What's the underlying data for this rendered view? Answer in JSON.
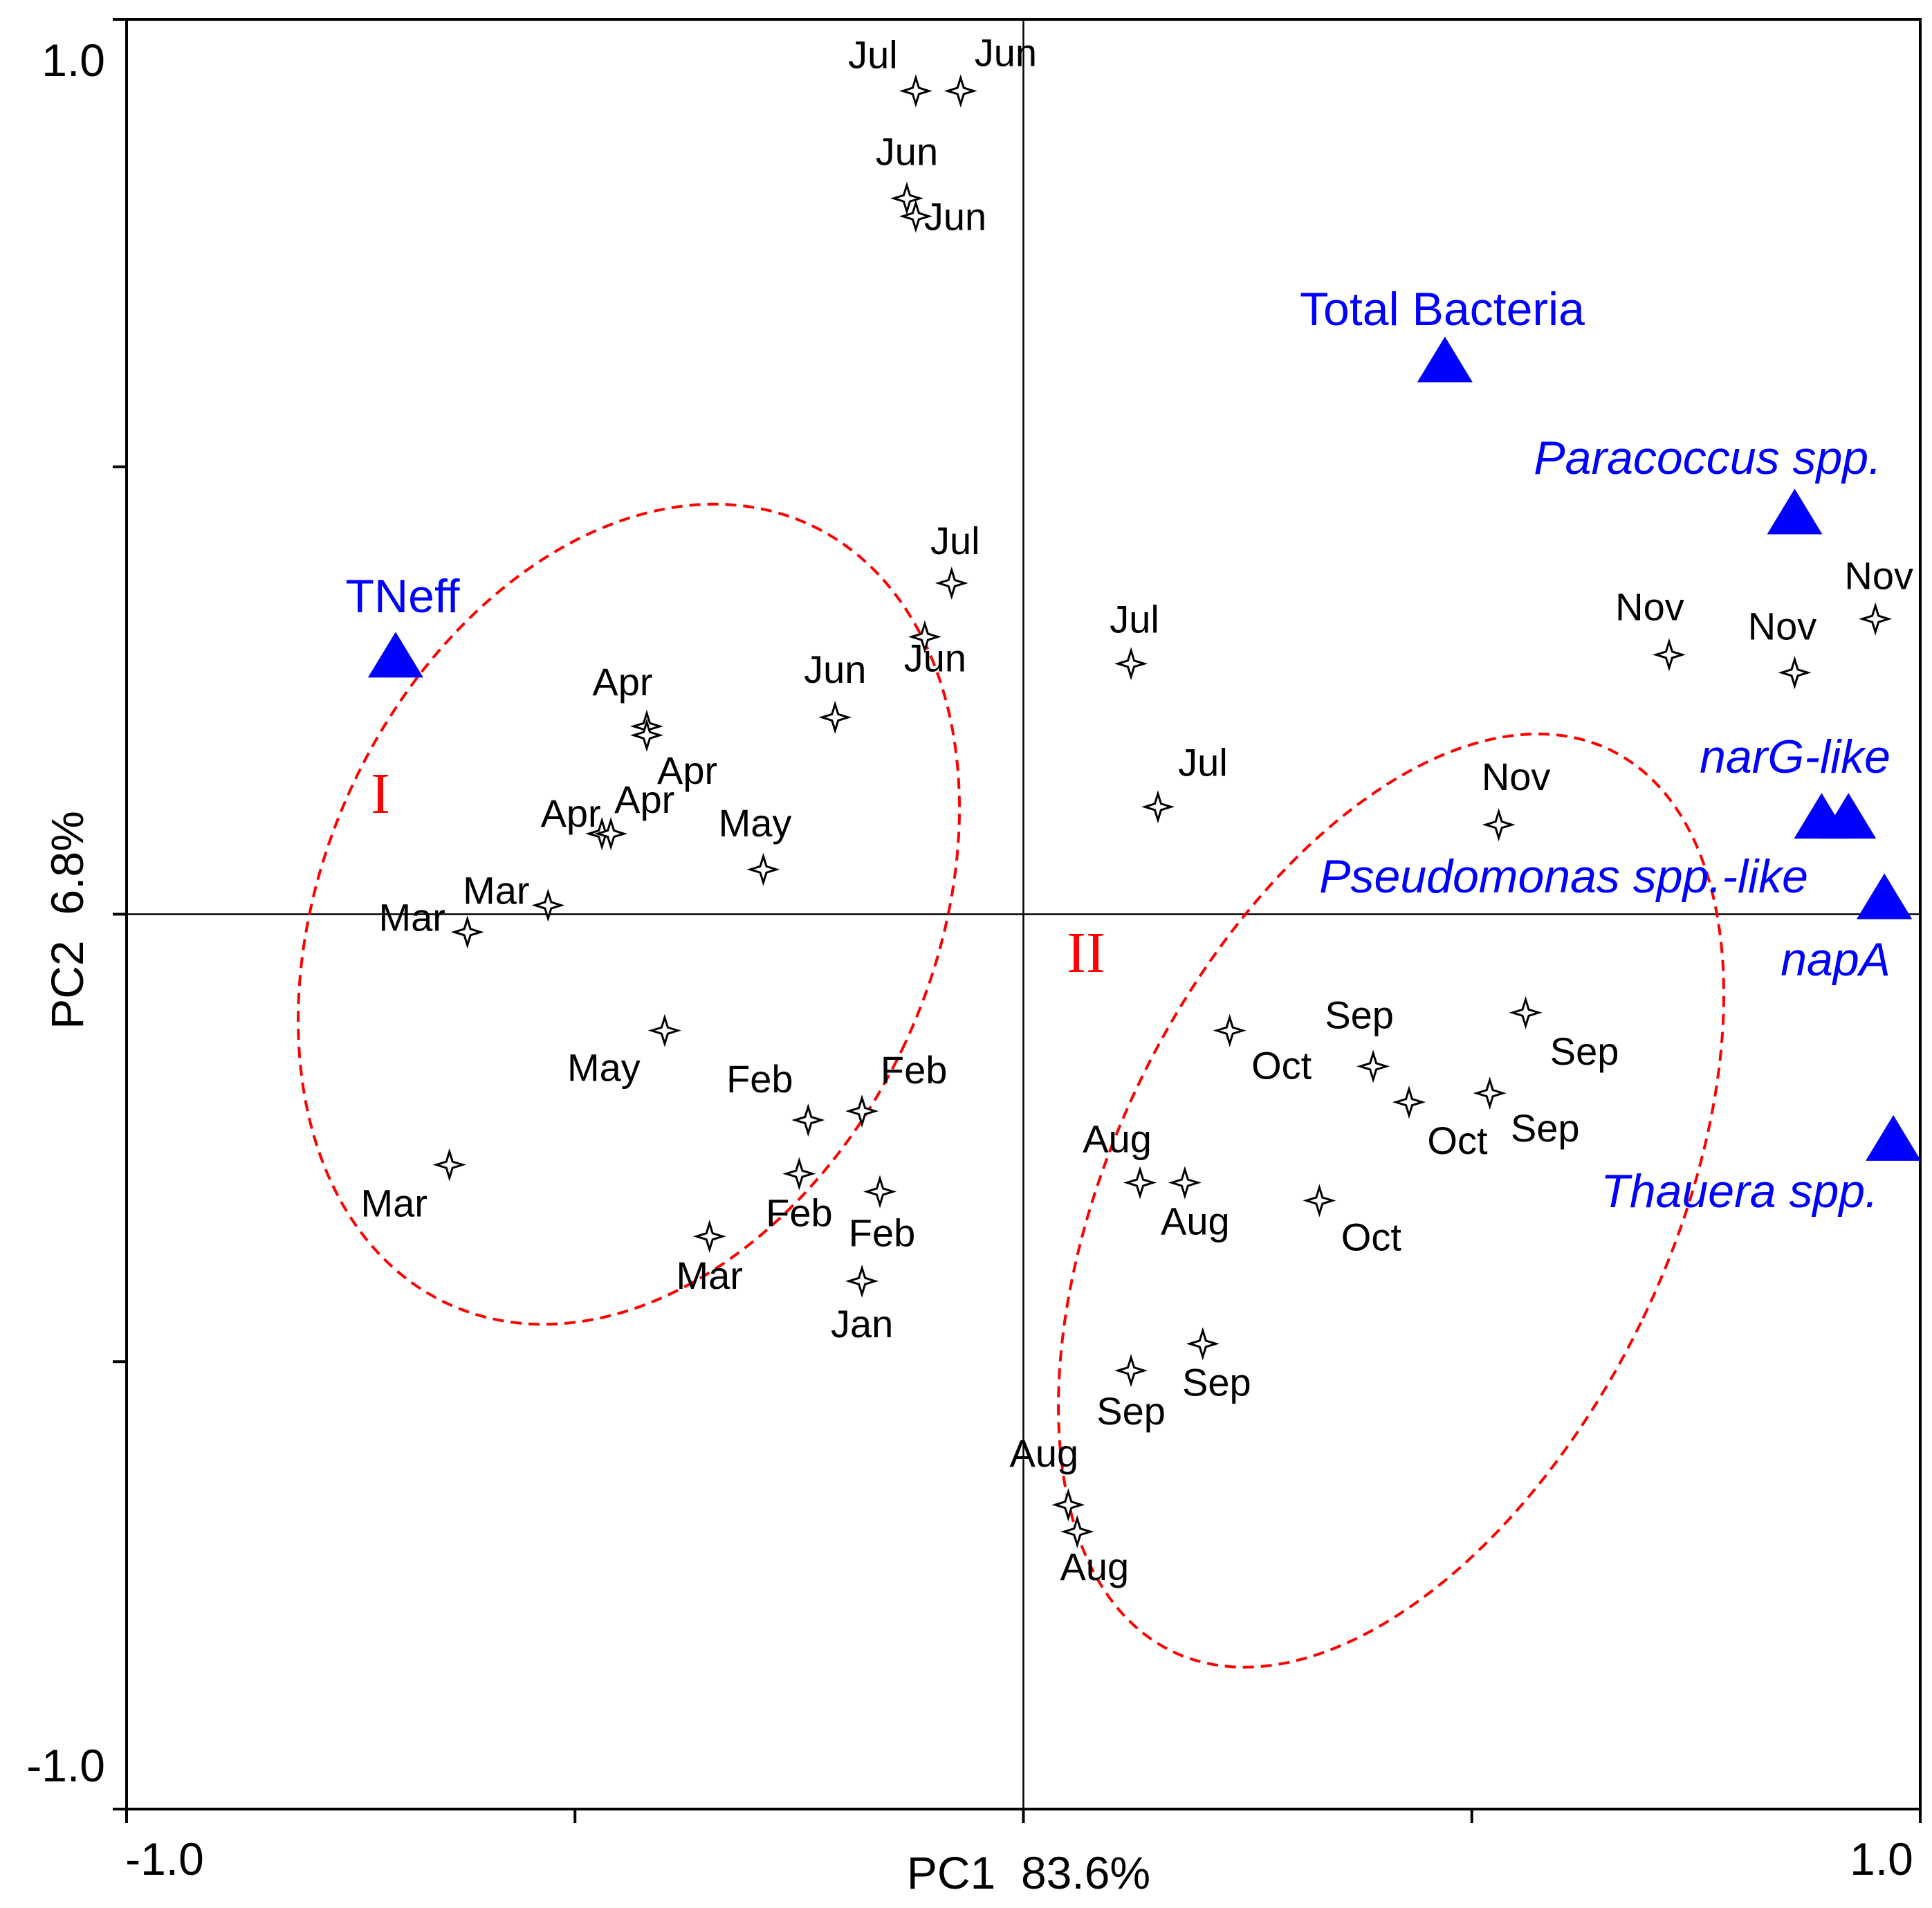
{
  "chart_data": {
    "type": "scatter",
    "title": "",
    "xlabel": "PC1  83.6%",
    "ylabel": "PC2  6.8%",
    "xlim": [
      -1.0,
      1.0
    ],
    "ylim": [
      -1.0,
      1.0
    ],
    "x_tick_labels": [
      {
        "value": -1.0,
        "label": "-1.0"
      },
      {
        "value": 1.0,
        "label": "1.0"
      }
    ],
    "y_tick_labels": [
      {
        "value": 1.0,
        "label": "1.0"
      },
      {
        "value": -1.0,
        "label": "-1.0"
      }
    ],
    "minor_ticks": [
      -0.5,
      0.0,
      0.5
    ],
    "origin_lines": true,
    "colors": {
      "axis": "#000000",
      "samples": "#000000",
      "variables": "#0000ff",
      "group_ellipse": "#ff0000",
      "group_label": "#ff0000"
    },
    "samples": [
      {
        "label": "Jul",
        "x": -0.12,
        "y": 0.92
      },
      {
        "label": "Jun",
        "x": -0.07,
        "y": 0.92
      },
      {
        "label": "Jun",
        "x": -0.13,
        "y": 0.8
      },
      {
        "label": "Jun",
        "x": -0.12,
        "y": 0.78
      },
      {
        "label": "Jul",
        "x": -0.08,
        "y": 0.37
      },
      {
        "label": "Jun",
        "x": -0.11,
        "y": 0.31
      },
      {
        "label": "Jun",
        "x": -0.21,
        "y": 0.22
      },
      {
        "label": "Apr",
        "x": -0.42,
        "y": 0.21
      },
      {
        "label": "Apr",
        "x": -0.42,
        "y": 0.2
      },
      {
        "label": "Apr",
        "x": -0.47,
        "y": 0.09
      },
      {
        "label": "Apr",
        "x": -0.46,
        "y": 0.09
      },
      {
        "label": "May",
        "x": -0.29,
        "y": 0.05
      },
      {
        "label": "Mar",
        "x": -0.53,
        "y": 0.01
      },
      {
        "label": "Mar",
        "x": -0.62,
        "y": -0.02
      },
      {
        "label": "May",
        "x": -0.4,
        "y": -0.13
      },
      {
        "label": "Feb",
        "x": -0.24,
        "y": -0.23
      },
      {
        "label": "Feb",
        "x": -0.18,
        "y": -0.22
      },
      {
        "label": "Feb",
        "x": -0.25,
        "y": -0.29
      },
      {
        "label": "Feb",
        "x": -0.16,
        "y": -0.31
      },
      {
        "label": "Mar",
        "x": -0.35,
        "y": -0.36
      },
      {
        "label": "Jan",
        "x": -0.18,
        "y": -0.41
      },
      {
        "label": "Mar",
        "x": -0.64,
        "y": -0.28
      },
      {
        "label": "Jul",
        "x": 0.12,
        "y": 0.28
      },
      {
        "label": "Jul",
        "x": 0.15,
        "y": 0.12
      },
      {
        "label": "Nov",
        "x": 0.53,
        "y": 0.1
      },
      {
        "label": "Nov",
        "x": 0.72,
        "y": 0.29
      },
      {
        "label": "Nov",
        "x": 0.86,
        "y": 0.27
      },
      {
        "label": "Nov",
        "x": 0.95,
        "y": 0.33
      },
      {
        "label": "Oct",
        "x": 0.23,
        "y": -0.13
      },
      {
        "label": "Sep",
        "x": 0.39,
        "y": -0.17
      },
      {
        "label": "Oct",
        "x": 0.43,
        "y": -0.21
      },
      {
        "label": "Sep",
        "x": 0.56,
        "y": -0.11
      },
      {
        "label": "Sep",
        "x": 0.52,
        "y": -0.2
      },
      {
        "label": "Aug",
        "x": 0.13,
        "y": -0.3
      },
      {
        "label": "Aug",
        "x": 0.18,
        "y": -0.3
      },
      {
        "label": "Oct",
        "x": 0.33,
        "y": -0.32
      },
      {
        "label": "Sep",
        "x": 0.12,
        "y": -0.51
      },
      {
        "label": "Sep",
        "x": 0.2,
        "y": -0.48
      },
      {
        "label": "Aug",
        "x": 0.05,
        "y": -0.66
      },
      {
        "label": "Aug",
        "x": 0.06,
        "y": -0.69
      }
    ],
    "variables": [
      {
        "label": "Total Bacteria",
        "x": 0.47,
        "y": 0.62,
        "italic": false
      },
      {
        "label": "Paracoccus spp.",
        "x": 0.86,
        "y": 0.45,
        "italic": true
      },
      {
        "label": "TNeff",
        "x": -0.7,
        "y": 0.29,
        "italic": false
      },
      {
        "label": "narG-like",
        "x": 0.89,
        "y": 0.11,
        "italic": true
      },
      {
        "label": "narG-like",
        "x": 0.92,
        "y": 0.11,
        "italic": true
      },
      {
        "label": "Pseudomonas spp.-like",
        "x": 0.96,
        "y": 0.02,
        "italic": true
      },
      {
        "label": "napA",
        "x": 0.96,
        "y": 0.02,
        "italic": true
      },
      {
        "label": "Thauera spp.",
        "x": 0.97,
        "y": -0.25,
        "italic": true
      }
    ],
    "variable_labels": [
      {
        "text": "Total Bacteria",
        "italic": false
      },
      {
        "text": "Paracoccus spp.",
        "italic": true
      },
      {
        "text": "TNeff",
        "italic": false
      },
      {
        "text": "narG-like",
        "italic": true
      },
      {
        "text": "Pseudomonas spp.-like",
        "italic": true
      },
      {
        "text": "napA",
        "italic": true
      },
      {
        "text": "Thauera spp.",
        "italic": true
      }
    ],
    "groups": [
      {
        "label": "I",
        "center": [
          -0.44,
          0.0
        ],
        "radii": [
          0.34,
          0.48
        ],
        "rotation_deg": 25
      },
      {
        "label": "II",
        "center": [
          0.41,
          -0.32
        ],
        "radii": [
          0.31,
          0.56
        ],
        "rotation_deg": 26
      }
    ],
    "group_labels": [
      {
        "text": "I",
        "x": -0.72,
        "y": 0.13
      },
      {
        "text": "II",
        "x": 0.07,
        "y": -0.05
      }
    ]
  }
}
